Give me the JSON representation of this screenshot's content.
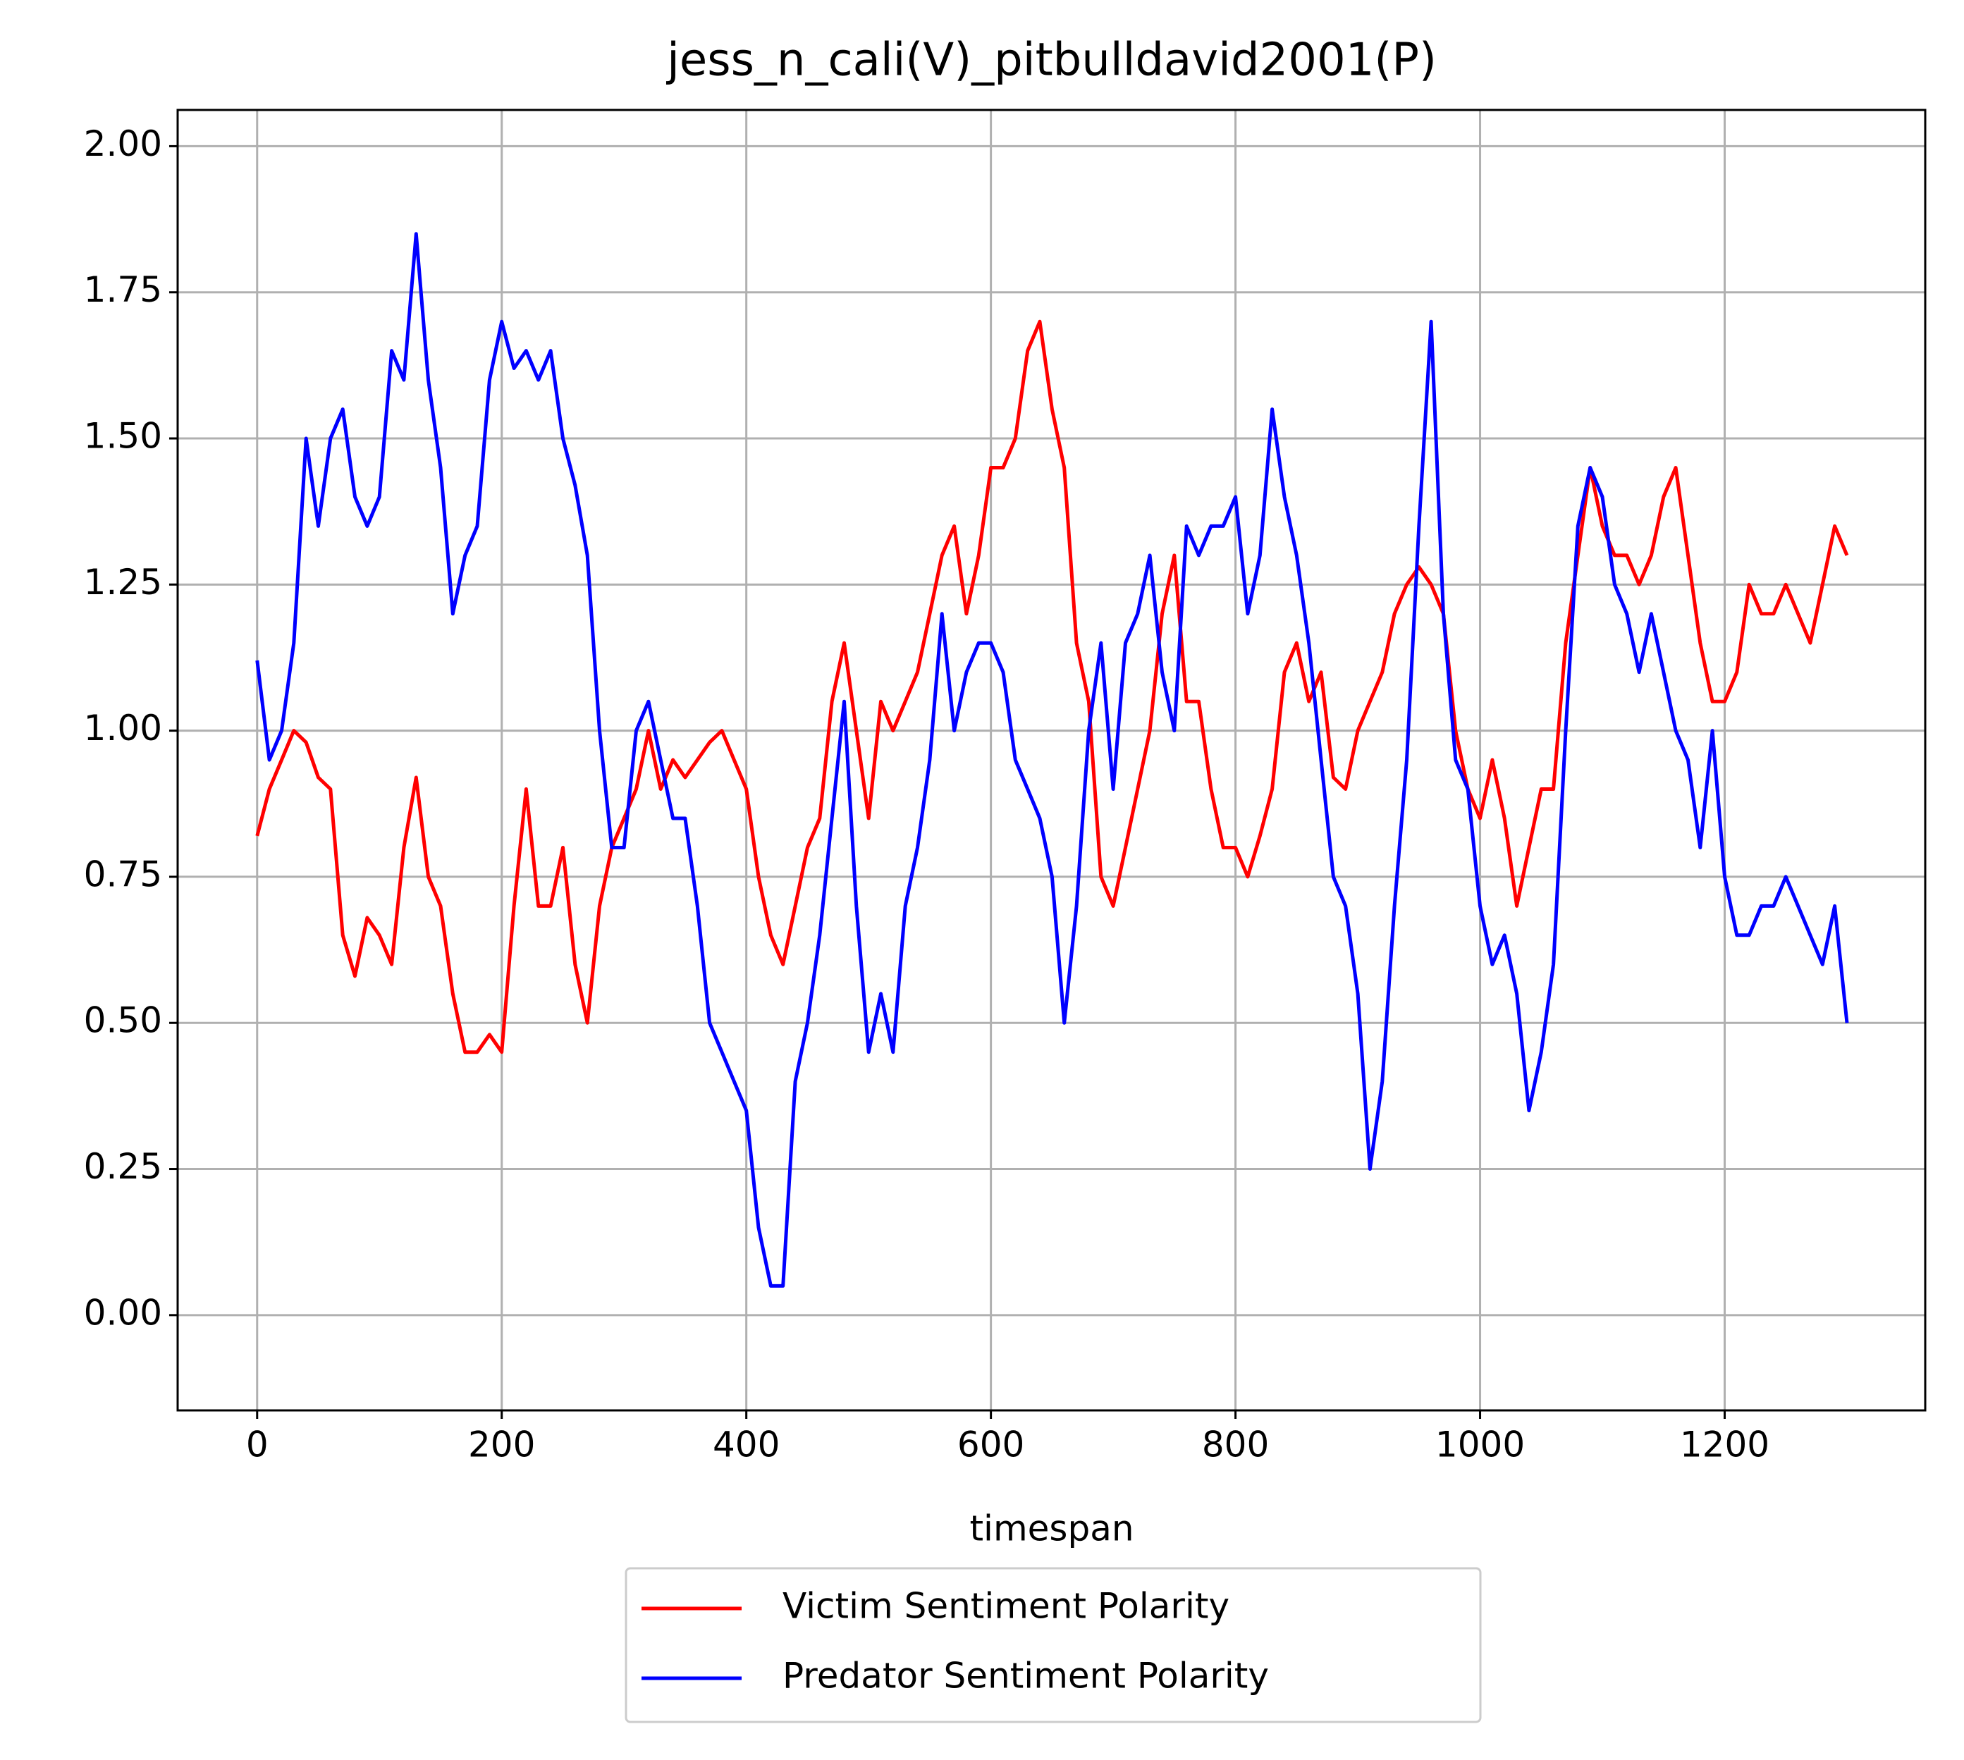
{
  "chart_data": {
    "type": "line",
    "title": "jess_n_cali(V)_pitbulldavid2001(P)",
    "x_label": "timespan",
    "x": [
      0,
      10,
      20,
      30,
      40,
      50,
      60,
      70,
      80,
      90,
      100,
      110,
      120,
      130,
      140,
      150,
      160,
      170,
      180,
      190,
      200,
      210,
      220,
      230,
      240,
      250,
      260,
      270,
      280,
      290,
      300,
      310,
      320,
      330,
      340,
      350,
      360,
      370,
      380,
      390,
      400,
      410,
      420,
      430,
      440,
      450,
      460,
      470,
      480,
      490,
      500,
      510,
      520,
      530,
      540,
      550,
      560,
      570,
      580,
      590,
      600,
      610,
      620,
      630,
      640,
      650,
      660,
      670,
      680,
      690,
      700,
      710,
      720,
      730,
      740,
      750,
      760,
      770,
      780,
      790,
      800,
      810,
      820,
      830,
      840,
      850,
      860,
      870,
      880,
      890,
      900,
      910,
      920,
      930,
      940,
      950,
      960,
      970,
      980,
      990,
      1000,
      1010,
      1020,
      1030,
      1040,
      1050,
      1060,
      1070,
      1080,
      1090,
      1100,
      1110,
      1120,
      1130,
      1140,
      1150,
      1160,
      1170,
      1180,
      1190,
      1200,
      1210,
      1220,
      1230,
      1240,
      1250,
      1260,
      1270,
      1280,
      1290,
      1300
    ],
    "series": [
      {
        "name": "Victim Sentiment Polarity",
        "color": "#ff0000",
        "values": [
          0.82,
          0.9,
          0.95,
          1.0,
          0.98,
          0.92,
          0.9,
          0.65,
          0.58,
          0.68,
          0.65,
          0.6,
          0.8,
          0.92,
          0.75,
          0.7,
          0.55,
          0.45,
          0.45,
          0.48,
          0.45,
          0.7,
          0.9,
          0.7,
          0.7,
          0.8,
          0.6,
          0.5,
          0.7,
          0.8,
          0.85,
          0.9,
          1.0,
          0.9,
          0.95,
          0.92,
          0.95,
          0.98,
          1.0,
          0.95,
          0.9,
          0.75,
          0.65,
          0.6,
          0.7,
          0.8,
          0.85,
          1.05,
          1.15,
          1.0,
          0.85,
          1.05,
          1.0,
          1.05,
          1.1,
          1.2,
          1.3,
          1.35,
          1.2,
          1.3,
          1.45,
          1.45,
          1.5,
          1.65,
          1.7,
          1.55,
          1.45,
          1.15,
          1.05,
          0.75,
          0.7,
          0.8,
          0.9,
          1.0,
          1.2,
          1.3,
          1.05,
          1.05,
          0.9,
          0.8,
          0.8,
          0.75,
          0.82,
          0.9,
          1.1,
          1.15,
          1.05,
          1.1,
          0.92,
          0.9,
          1.0,
          1.05,
          1.1,
          1.2,
          1.25,
          1.28,
          1.25,
          1.2,
          1.0,
          0.9,
          0.85,
          0.95,
          0.85,
          0.7,
          0.8,
          0.9,
          0.9,
          1.15,
          1.3,
          1.45,
          1.35,
          1.3,
          1.3,
          1.25,
          1.3,
          1.4,
          1.45,
          1.3,
          1.15,
          1.05,
          1.05,
          1.1,
          1.25,
          1.2,
          1.2,
          1.25,
          1.2,
          1.15,
          1.25,
          1.35,
          1.3
        ]
      },
      {
        "name": "Predator Sentiment Polarity",
        "color": "#0000ff",
        "values": [
          1.12,
          0.95,
          1.0,
          1.15,
          1.5,
          1.35,
          1.5,
          1.55,
          1.4,
          1.35,
          1.4,
          1.65,
          1.6,
          1.85,
          1.6,
          1.45,
          1.2,
          1.3,
          1.35,
          1.6,
          1.7,
          1.62,
          1.65,
          1.6,
          1.65,
          1.5,
          1.42,
          1.3,
          1.0,
          0.8,
          0.8,
          1.0,
          1.05,
          0.95,
          0.85,
          0.85,
          0.7,
          0.5,
          0.45,
          0.4,
          0.35,
          0.15,
          0.05,
          0.05,
          0.4,
          0.5,
          0.65,
          0.85,
          1.05,
          0.7,
          0.45,
          0.55,
          0.45,
          0.7,
          0.8,
          0.95,
          1.2,
          1.0,
          1.1,
          1.15,
          1.15,
          1.1,
          0.95,
          0.9,
          0.85,
          0.75,
          0.5,
          0.7,
          1.0,
          1.15,
          0.9,
          1.15,
          1.2,
          1.3,
          1.1,
          1.0,
          1.35,
          1.3,
          1.35,
          1.35,
          1.4,
          1.2,
          1.3,
          1.55,
          1.4,
          1.3,
          1.15,
          0.95,
          0.75,
          0.7,
          0.55,
          0.25,
          0.4,
          0.7,
          0.95,
          1.35,
          1.7,
          1.2,
          0.95,
          0.9,
          0.7,
          0.6,
          0.65,
          0.55,
          0.35,
          0.45,
          0.6,
          1.0,
          1.35,
          1.45,
          1.4,
          1.25,
          1.2,
          1.1,
          1.2,
          1.1,
          1.0,
          0.95,
          0.8,
          1.0,
          0.75,
          0.65,
          0.65,
          0.7,
          0.7,
          0.75,
          0.7,
          0.65,
          0.6,
          0.7,
          0.5
        ]
      }
    ],
    "xlim": [
      -65,
      1364
    ],
    "ylim": [
      -0.163,
      2.062
    ],
    "xticks": [
      0,
      200,
      400,
      600,
      800,
      1000,
      1200
    ],
    "yticks": [
      {
        "value": 0,
        "label": "0.00"
      },
      {
        "value": 0.25,
        "label": "0.25"
      },
      {
        "value": 0.5,
        "label": "0.50"
      },
      {
        "value": 0.75,
        "label": "0.75"
      },
      {
        "value": 1,
        "label": "1.00"
      },
      {
        "value": 1.25,
        "label": "1.25"
      },
      {
        "value": 1.5,
        "label": "1.50"
      },
      {
        "value": 1.75,
        "label": "1.75"
      },
      {
        "value": 2,
        "label": "2.00"
      }
    ],
    "grid": true,
    "legend": "bottom"
  }
}
